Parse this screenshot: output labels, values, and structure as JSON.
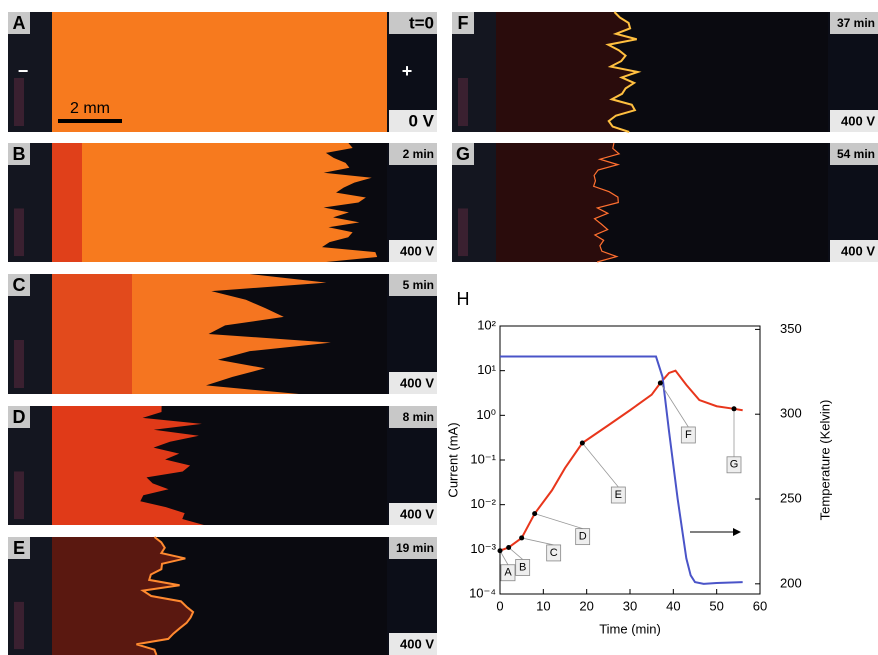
{
  "panels": [
    {
      "label": "A",
      "time": "t=0",
      "voltage": "0 V"
    },
    {
      "label": "B",
      "time": "2 min",
      "voltage": "400 V"
    },
    {
      "label": "C",
      "time": "5 min",
      "voltage": "400 V"
    },
    {
      "label": "D",
      "time": "8 min",
      "voltage": "400 V"
    },
    {
      "label": "E",
      "time": "19 min",
      "voltage": "400 V"
    },
    {
      "label": "F",
      "time": "37 min",
      "voltage": "400 V"
    },
    {
      "label": "G",
      "time": "54 min",
      "voltage": "400 V"
    }
  ],
  "panel_a_annotations": {
    "cathode": "−",
    "anode": "+",
    "scale_bar": "2 mm"
  },
  "chart_data": {
    "type": "line",
    "panel_label": "H",
    "x_label": "Time (min)",
    "y_label": "Current (mA)",
    "y2_label": "Temperature (Kelvin)",
    "xlim": [
      0,
      60
    ],
    "xticks": [
      0,
      10,
      20,
      30,
      40,
      50,
      60
    ],
    "ylim": [
      0.0001,
      100
    ],
    "log_y": true,
    "yticks": [
      {
        "value": 0.0001,
        "label": "10⁻⁴"
      },
      {
        "value": 0.001,
        "label": "10⁻³"
      },
      {
        "value": 0.01,
        "label": "10⁻²"
      },
      {
        "value": 0.1,
        "label": "10⁻¹"
      },
      {
        "value": 1,
        "label": "10⁰"
      },
      {
        "value": 10,
        "label": "10¹"
      },
      {
        "value": 100,
        "label": "10²"
      }
    ],
    "y2lim": [
      194,
      352
    ],
    "y2ticks": [
      200,
      250,
      300,
      350
    ],
    "series": [
      {
        "color": "#e8361c",
        "x": [
          0,
          2,
          5,
          8,
          12,
          15,
          19,
          25,
          30,
          35,
          37,
          39,
          40.5,
          43,
          46,
          50,
          54,
          56
        ],
        "values": [
          0.00093,
          0.0011,
          0.0018,
          0.0063,
          0.021,
          0.066,
          0.24,
          0.6,
          1.3,
          2.9,
          5.3,
          8.9,
          10,
          4.8,
          2.2,
          1.6,
          1.4,
          1.3
        ]
      },
      {
        "color": "#4a54c8",
        "axis": "y2",
        "x": [
          0,
          36,
          37.5,
          39,
          41,
          43,
          44,
          45,
          47,
          50,
          56
        ],
        "values": [
          334,
          334,
          322,
          290,
          250,
          215,
          205,
          201,
          200,
          200.5,
          201
        ]
      }
    ],
    "markers": {
      "labels": [
        "A",
        "B",
        "C",
        "D",
        "E",
        "F",
        "G"
      ],
      "x": [
        0,
        2,
        5,
        8,
        19,
        37,
        54
      ],
      "values": [
        0.00093,
        0.0011,
        0.0018,
        0.0063,
        0.24,
        5.3,
        1.4
      ]
    }
  }
}
